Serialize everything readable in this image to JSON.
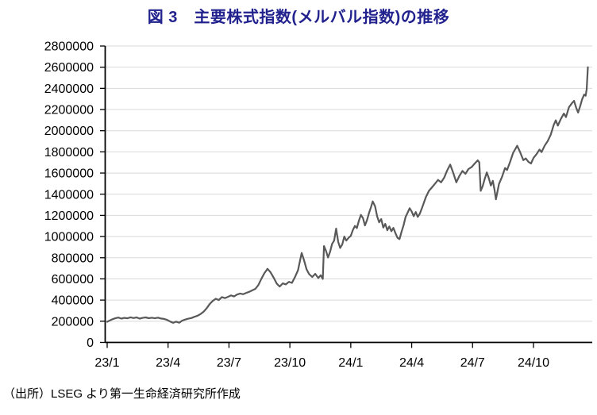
{
  "title": "図 3　主要株式指数(メルバル指数)の推移",
  "source": "（出所）LSEG より第一生命経済研究所作成",
  "colors": {
    "title": "#22228E",
    "line": "#595959",
    "grid": "#D9D9D9",
    "axis": "#000000",
    "tick_label": "#000000"
  },
  "chart_data": {
    "type": "line",
    "title": "図 3　主要株式指数(メルバル指数)の推移",
    "xlabel": "",
    "ylabel": "",
    "ylim": [
      0,
      2800000
    ],
    "y_tick_step": 200000,
    "y_tick_labels": [
      "0",
      "200000",
      "400000",
      "600000",
      "800000",
      "1000000",
      "1200000",
      "1400000",
      "1600000",
      "1800000",
      "2000000",
      "2200000",
      "2400000",
      "2600000",
      "2800000"
    ],
    "x_tick_labels": [
      "23/1",
      "23/4",
      "23/7",
      "23/10",
      "24/1",
      "24/4",
      "24/7",
      "24/10"
    ],
    "x_tick_months": [
      0,
      3,
      6,
      9,
      12,
      15,
      18,
      21
    ],
    "grid": "horizontal",
    "legend": "none",
    "series": [
      {
        "name": "メルバル指数",
        "x_unit": "months since 2023-01",
        "points": [
          [
            0,
            195000
          ],
          [
            0.1,
            205000
          ],
          [
            0.25,
            218000
          ],
          [
            0.4,
            228000
          ],
          [
            0.55,
            235000
          ],
          [
            0.7,
            225000
          ],
          [
            0.85,
            232000
          ],
          [
            1,
            228000
          ],
          [
            1.15,
            237000
          ],
          [
            1.3,
            230000
          ],
          [
            1.45,
            236000
          ],
          [
            1.6,
            225000
          ],
          [
            1.75,
            232000
          ],
          [
            1.9,
            236000
          ],
          [
            2.05,
            229000
          ],
          [
            2.2,
            233000
          ],
          [
            2.35,
            228000
          ],
          [
            2.5,
            234000
          ],
          [
            2.65,
            226000
          ],
          [
            2.8,
            222000
          ],
          [
            2.95,
            213000
          ],
          [
            3.1,
            197000
          ],
          [
            3.25,
            185000
          ],
          [
            3.4,
            196000
          ],
          [
            3.55,
            186000
          ],
          [
            3.7,
            206000
          ],
          [
            3.85,
            216000
          ],
          [
            4,
            224000
          ],
          [
            4.15,
            230000
          ],
          [
            4.3,
            242000
          ],
          [
            4.45,
            252000
          ],
          [
            4.6,
            268000
          ],
          [
            4.75,
            290000
          ],
          [
            4.9,
            322000
          ],
          [
            5.05,
            362000
          ],
          [
            5.2,
            392000
          ],
          [
            5.35,
            412000
          ],
          [
            5.5,
            400000
          ],
          [
            5.65,
            428000
          ],
          [
            5.8,
            418000
          ],
          [
            5.95,
            430000
          ],
          [
            6.1,
            444000
          ],
          [
            6.25,
            434000
          ],
          [
            6.4,
            452000
          ],
          [
            6.55,
            462000
          ],
          [
            6.7,
            455000
          ],
          [
            6.85,
            468000
          ],
          [
            7,
            478000
          ],
          [
            7.15,
            492000
          ],
          [
            7.3,
            506000
          ],
          [
            7.45,
            542000
          ],
          [
            7.6,
            602000
          ],
          [
            7.75,
            656000
          ],
          [
            7.9,
            695000
          ],
          [
            8.05,
            662000
          ],
          [
            8.2,
            612000
          ],
          [
            8.35,
            556000
          ],
          [
            8.5,
            528000
          ],
          [
            8.65,
            558000
          ],
          [
            8.8,
            548000
          ],
          [
            8.95,
            572000
          ],
          [
            9.1,
            562000
          ],
          [
            9.25,
            616000
          ],
          [
            9.4,
            682000
          ],
          [
            9.5,
            772000
          ],
          [
            9.58,
            845000
          ],
          [
            9.7,
            775000
          ],
          [
            9.82,
            692000
          ],
          [
            9.95,
            645000
          ],
          [
            10.1,
            618000
          ],
          [
            10.25,
            648000
          ],
          [
            10.4,
            608000
          ],
          [
            10.52,
            634000
          ],
          [
            10.62,
            600000
          ],
          [
            10.68,
            910000
          ],
          [
            10.78,
            865000
          ],
          [
            10.88,
            802000
          ],
          [
            10.98,
            856000
          ],
          [
            11.08,
            930000
          ],
          [
            11.18,
            962000
          ],
          [
            11.28,
            1075000
          ],
          [
            11.38,
            950000
          ],
          [
            11.48,
            892000
          ],
          [
            11.58,
            925000
          ],
          [
            11.68,
            1000000
          ],
          [
            11.78,
            962000
          ],
          [
            11.9,
            990000
          ],
          [
            12,
            1005000
          ],
          [
            12.1,
            1060000
          ],
          [
            12.2,
            1100000
          ],
          [
            12.3,
            1080000
          ],
          [
            12.4,
            1150000
          ],
          [
            12.5,
            1205000
          ],
          [
            12.6,
            1175000
          ],
          [
            12.7,
            1105000
          ],
          [
            12.8,
            1155000
          ],
          [
            12.9,
            1225000
          ],
          [
            13,
            1280000
          ],
          [
            13.08,
            1332000
          ],
          [
            13.2,
            1285000
          ],
          [
            13.3,
            1190000
          ],
          [
            13.4,
            1135000
          ],
          [
            13.5,
            1165000
          ],
          [
            13.6,
            1085000
          ],
          [
            13.7,
            1120000
          ],
          [
            13.8,
            1060000
          ],
          [
            13.9,
            1095000
          ],
          [
            14,
            1050000
          ],
          [
            14.1,
            1082000
          ],
          [
            14.2,
            1032000
          ],
          [
            14.3,
            988000
          ],
          [
            14.4,
            975000
          ],
          [
            14.5,
            1045000
          ],
          [
            14.6,
            1105000
          ],
          [
            14.7,
            1185000
          ],
          [
            14.8,
            1225000
          ],
          [
            14.9,
            1268000
          ],
          [
            15,
            1238000
          ],
          [
            15.1,
            1192000
          ],
          [
            15.2,
            1232000
          ],
          [
            15.3,
            1185000
          ],
          [
            15.4,
            1215000
          ],
          [
            15.55,
            1292000
          ],
          [
            15.7,
            1372000
          ],
          [
            15.85,
            1432000
          ],
          [
            16,
            1465000
          ],
          [
            16.15,
            1500000
          ],
          [
            16.3,
            1535000
          ],
          [
            16.45,
            1512000
          ],
          [
            16.6,
            1556000
          ],
          [
            16.75,
            1625000
          ],
          [
            16.9,
            1680000
          ],
          [
            17.05,
            1600000
          ],
          [
            17.2,
            1512000
          ],
          [
            17.35,
            1572000
          ],
          [
            17.5,
            1620000
          ],
          [
            17.65,
            1592000
          ],
          [
            17.8,
            1638000
          ],
          [
            17.95,
            1656000
          ],
          [
            18.1,
            1688000
          ],
          [
            18.25,
            1720000
          ],
          [
            18.33,
            1702000
          ],
          [
            18.4,
            1432000
          ],
          [
            18.5,
            1476000
          ],
          [
            18.6,
            1546000
          ],
          [
            18.7,
            1606000
          ],
          [
            18.8,
            1552000
          ],
          [
            18.9,
            1482000
          ],
          [
            19,
            1526000
          ],
          [
            19.08,
            1442000
          ],
          [
            19.15,
            1352000
          ],
          [
            19.3,
            1496000
          ],
          [
            19.45,
            1562000
          ],
          [
            19.6,
            1648000
          ],
          [
            19.7,
            1628000
          ],
          [
            19.85,
            1706000
          ],
          [
            20,
            1792000
          ],
          [
            20.2,
            1858000
          ],
          [
            20.35,
            1795000
          ],
          [
            20.5,
            1722000
          ],
          [
            20.62,
            1738000
          ],
          [
            20.75,
            1706000
          ],
          [
            20.88,
            1690000
          ],
          [
            21,
            1742000
          ],
          [
            21.15,
            1778000
          ],
          [
            21.3,
            1822000
          ],
          [
            21.4,
            1798000
          ],
          [
            21.55,
            1858000
          ],
          [
            21.7,
            1902000
          ],
          [
            21.85,
            1962000
          ],
          [
            22,
            2055000
          ],
          [
            22.1,
            2098000
          ],
          [
            22.2,
            2048000
          ],
          [
            22.35,
            2112000
          ],
          [
            22.5,
            2162000
          ],
          [
            22.6,
            2128000
          ],
          [
            22.75,
            2222000
          ],
          [
            22.9,
            2262000
          ],
          [
            23,
            2282000
          ],
          [
            23.1,
            2218000
          ],
          [
            23.2,
            2172000
          ],
          [
            23.3,
            2232000
          ],
          [
            23.4,
            2298000
          ],
          [
            23.5,
            2342000
          ],
          [
            23.57,
            2330000
          ],
          [
            23.62,
            2392000
          ],
          [
            23.68,
            2600000
          ]
        ]
      }
    ]
  }
}
